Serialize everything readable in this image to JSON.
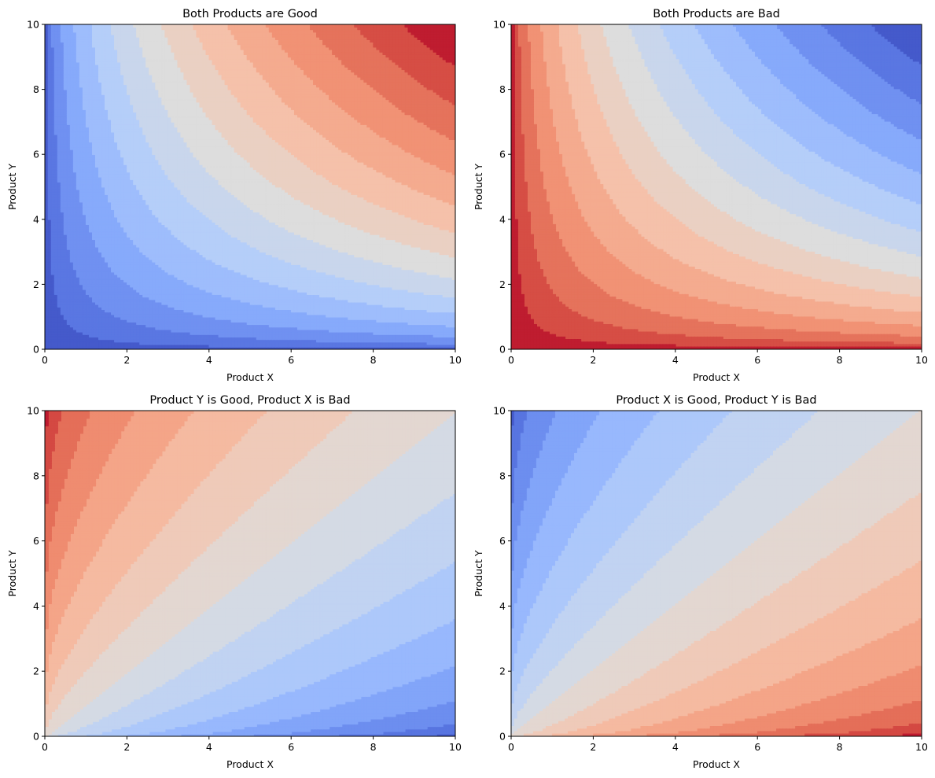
{
  "chart_data": [
    {
      "type": "heatmap",
      "subtype": "filled-contour",
      "title": "Both Products are Good",
      "xlabel": "Product X",
      "ylabel": "Product Y",
      "xlim": [
        0,
        10
      ],
      "ylim": [
        0,
        10
      ],
      "xticks": [
        "0",
        "2",
        "4",
        "6",
        "8",
        "10"
      ],
      "yticks": [
        "0",
        "2",
        "4",
        "6",
        "8",
        "10"
      ],
      "utility": "sqrt(x*y)",
      "level_step": 0.6666666667,
      "levels": 15,
      "colormap": "coolwarm",
      "high_color": "#b40426",
      "low_color": "#3b4cc0",
      "grid": false
    },
    {
      "type": "heatmap",
      "subtype": "filled-contour",
      "title": "Both Products are Bad",
      "xlabel": "Product X",
      "ylabel": "Product Y",
      "xlim": [
        0,
        10
      ],
      "ylim": [
        0,
        10
      ],
      "xticks": [
        "0",
        "2",
        "4",
        "6",
        "8",
        "10"
      ],
      "yticks": [
        "0",
        "2",
        "4",
        "6",
        "8",
        "10"
      ],
      "utility": "-sqrt(x*y)",
      "level_step": 0.6666666667,
      "levels": 15,
      "colormap": "coolwarm",
      "high_color": "#b40426",
      "low_color": "#3b4cc0",
      "grid": false
    },
    {
      "type": "heatmap",
      "subtype": "filled-contour",
      "title": "Product Y is Good, Product X is Bad",
      "xlabel": "Product X",
      "ylabel": "Product Y",
      "xlim": [
        0,
        10
      ],
      "ylim": [
        0,
        10
      ],
      "xticks": [
        "0",
        "2",
        "4",
        "6",
        "8",
        "10"
      ],
      "yticks": [
        "0",
        "2",
        "4",
        "6",
        "8",
        "10"
      ],
      "utility": "sqrt(y) - sqrt(x)",
      "level_step": 0.4216370213,
      "levels": 15,
      "colormap": "coolwarm",
      "high_color": "#b40426",
      "low_color": "#3b4cc0",
      "grid": false
    },
    {
      "type": "heatmap",
      "subtype": "filled-contour",
      "title": "Product X is Good, Product Y is Bad",
      "xlabel": "Product X",
      "ylabel": "Product Y",
      "xlim": [
        0,
        10
      ],
      "ylim": [
        0,
        10
      ],
      "xticks": [
        "0",
        "2",
        "4",
        "6",
        "8",
        "10"
      ],
      "yticks": [
        "0",
        "2",
        "4",
        "6",
        "8",
        "10"
      ],
      "utility": "sqrt(x) - sqrt(y)",
      "level_step": 0.4216370213,
      "levels": 15,
      "colormap": "coolwarm",
      "high_color": "#b40426",
      "low_color": "#3b4cc0",
      "grid": false
    }
  ]
}
